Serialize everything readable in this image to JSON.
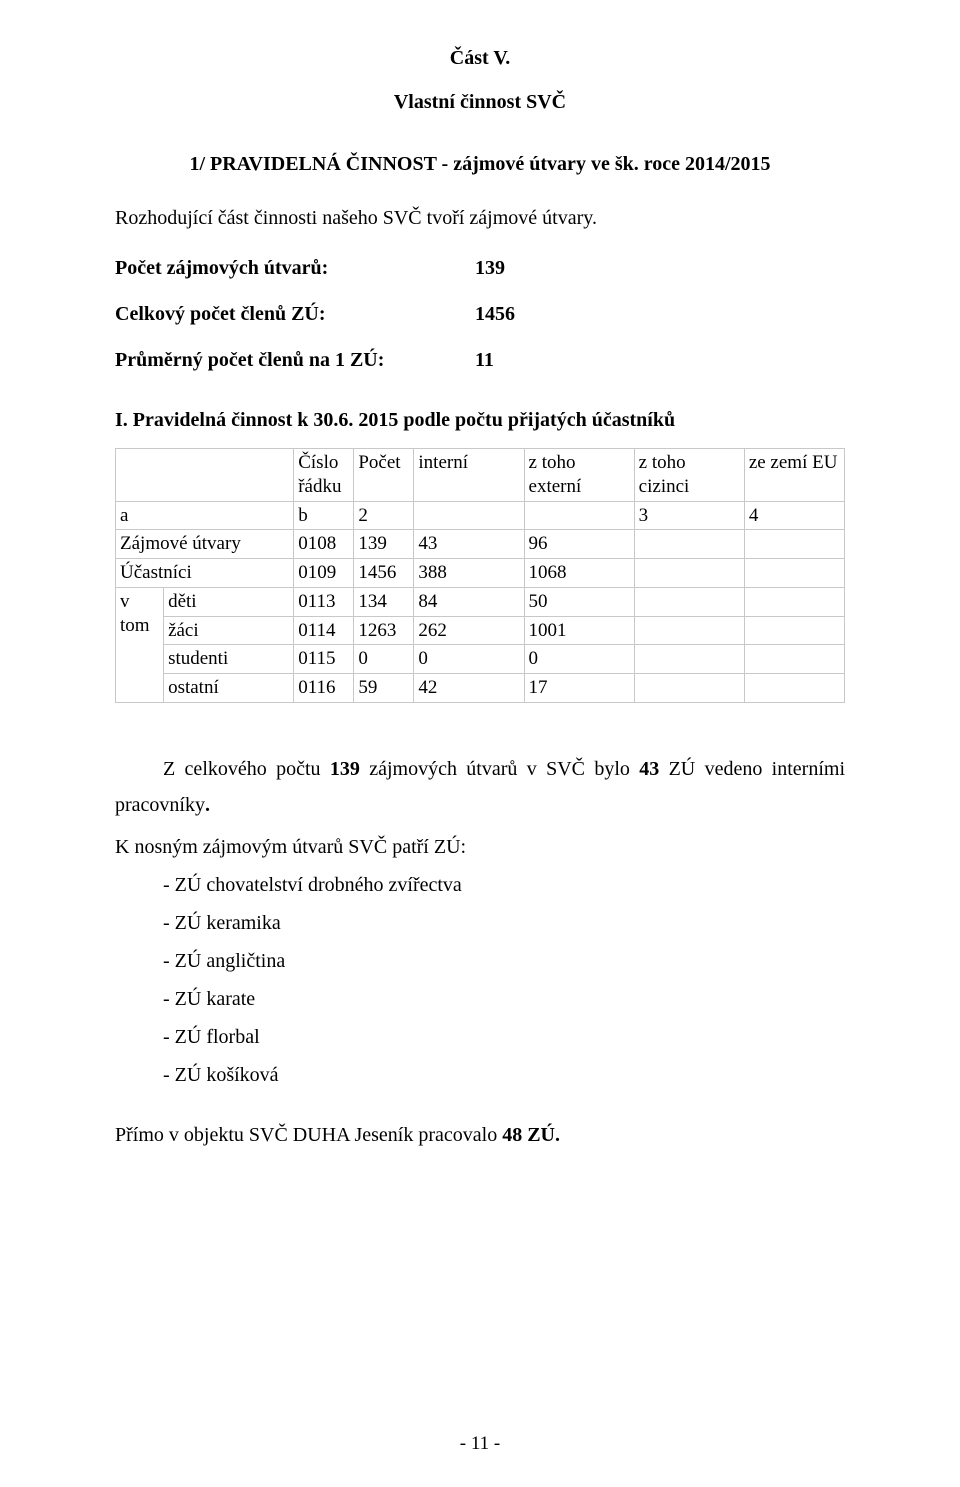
{
  "header": {
    "part": "Část V.",
    "subtitle": "Vlastní činnost SVČ"
  },
  "heading1": "1/ PRAVIDELNÁ ČINNOST  - zájmové útvary ve šk. roce 2014/2015",
  "intro": "Rozhodující část činnosti našeho SVČ tvoří zájmové útvary.",
  "kv": {
    "rows": [
      {
        "label": "Počet zájmových útvarů:",
        "value": "139"
      },
      {
        "label": "Celkový počet členů  ZÚ:",
        "value": "1456"
      },
      {
        "label": "Průměrný počet členů na 1 ZÚ:",
        "value": "11"
      }
    ]
  },
  "table": {
    "caption": "I. Pravidelná činnost k 30.6. 2015  podle počtu přijatých účastníků",
    "head": {
      "col_cislo": "Číslo řádku",
      "col_pocet": "Počet",
      "col_interni": "interní",
      "col_ztoho_ext": "z toho externí",
      "col_ztoho_ciz": "z toho cizinci",
      "col_zemi_eu": "ze zemí EU"
    },
    "axis_row": {
      "a": "a",
      "b": "b",
      "c2": "2",
      "c3": "3",
      "c4": "4"
    },
    "rows": [
      {
        "label": "Zájmové útvary",
        "cislo": "0108",
        "pocet": "139",
        "interni": "43",
        "ext": "96",
        "ciz": "",
        "eu": ""
      },
      {
        "label": "Účastníci",
        "cislo": "0109",
        "pocet": "1456",
        "interni": "388",
        "ext": "1068",
        "ciz": "",
        "eu": ""
      }
    ],
    "vtom_label": "v tom",
    "vtom_rows": [
      {
        "label": "děti",
        "cislo": "0113",
        "pocet": "134",
        "interni": "84",
        "ext": "50",
        "ciz": "",
        "eu": ""
      },
      {
        "label": "žáci",
        "cislo": "0114",
        "pocet": "1263",
        "interni": "262",
        "ext": "1001",
        "ciz": "",
        "eu": ""
      },
      {
        "label": "studenti",
        "cislo": "0115",
        "pocet": "0",
        "interni": "0",
        "ext": "0",
        "ciz": "",
        "eu": ""
      },
      {
        "label": "ostatní",
        "cislo": "0116",
        "pocet": "59",
        "interni": "42",
        "ext": "17",
        "ciz": "",
        "eu": ""
      }
    ]
  },
  "body": {
    "p1_prefix": "Z celkového počtu ",
    "p1_b1": "139",
    "p1_mid1": " zájmových útvarů v SVČ bylo ",
    "p1_b2": "43",
    "p1_mid2": " ZÚ vedeno interními pracovníky",
    "p1_b3": ".",
    "list_lead": "K nosným zájmovým útvarů SVČ patří ZÚ:",
    "items": [
      "ZÚ chovatelství drobného zvířectva",
      "ZÚ keramika",
      "ZÚ angličtina",
      "ZÚ karate",
      "ZÚ florbal",
      "ZÚ košíková"
    ],
    "closing_prefix": "Přímo v objektu SVČ DUHA  Jeseník  pracovalo ",
    "closing_bold": "48 ZÚ."
  },
  "page_number": "- 11 -"
}
